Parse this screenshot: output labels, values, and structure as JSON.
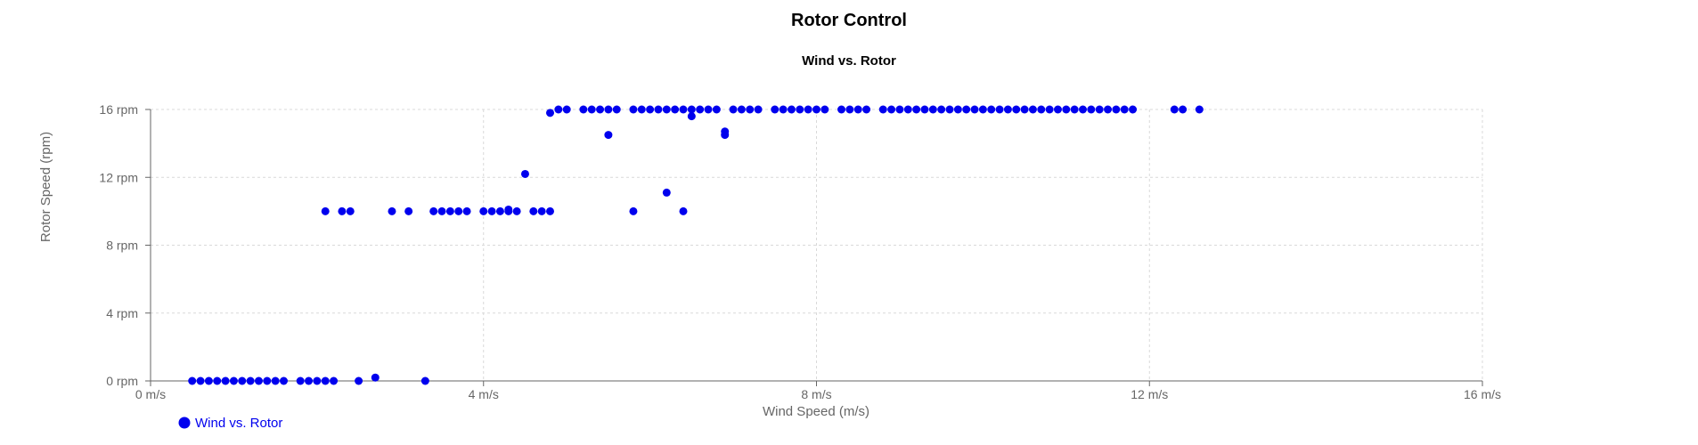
{
  "chart_data": {
    "type": "scatter",
    "title": "Rotor Control",
    "subtitle": "Wind vs. Rotor",
    "xlabel": "Wind Speed (m/s)",
    "ylabel": "Rotor Speed (rpm)",
    "xlim": [
      0,
      16
    ],
    "ylim": [
      0,
      16
    ],
    "x_ticks": [
      "0 m/s",
      "4 m/s",
      "8 m/s",
      "12 m/s",
      "16 m/s"
    ],
    "y_ticks": [
      "0 rpm",
      "4 rpm",
      "8 rpm",
      "12 rpm",
      "16 rpm"
    ],
    "grid": true,
    "legend_position": "bottom-left",
    "series": [
      {
        "name": "Wind vs. Rotor",
        "color": "#0000ee",
        "points": [
          [
            0.5,
            0
          ],
          [
            0.6,
            0
          ],
          [
            0.7,
            0
          ],
          [
            0.8,
            0
          ],
          [
            0.9,
            0
          ],
          [
            1.0,
            0
          ],
          [
            1.1,
            0
          ],
          [
            1.2,
            0
          ],
          [
            1.3,
            0
          ],
          [
            1.4,
            0
          ],
          [
            1.5,
            0
          ],
          [
            1.6,
            0
          ],
          [
            1.8,
            0
          ],
          [
            1.9,
            0
          ],
          [
            2.0,
            0
          ],
          [
            2.1,
            0
          ],
          [
            2.2,
            0
          ],
          [
            2.5,
            0
          ],
          [
            2.7,
            0.2
          ],
          [
            3.3,
            0
          ],
          [
            2.1,
            10
          ],
          [
            2.3,
            10
          ],
          [
            2.4,
            10
          ],
          [
            2.9,
            10
          ],
          [
            3.1,
            10
          ],
          [
            3.4,
            10
          ],
          [
            3.5,
            10
          ],
          [
            3.6,
            10
          ],
          [
            3.7,
            10
          ],
          [
            3.8,
            10
          ],
          [
            4.0,
            10
          ],
          [
            4.1,
            10
          ],
          [
            4.2,
            10
          ],
          [
            4.3,
            10
          ],
          [
            4.3,
            10.1
          ],
          [
            4.4,
            10
          ],
          [
            4.6,
            10
          ],
          [
            4.7,
            10
          ],
          [
            4.8,
            10
          ],
          [
            4.5,
            12.2
          ],
          [
            4.8,
            15.8
          ],
          [
            4.9,
            16
          ],
          [
            5.0,
            16
          ],
          [
            5.2,
            16
          ],
          [
            5.3,
            16
          ],
          [
            5.4,
            16
          ],
          [
            5.5,
            16
          ],
          [
            5.6,
            16
          ],
          [
            5.5,
            14.5
          ],
          [
            5.8,
            16
          ],
          [
            5.9,
            16
          ],
          [
            6.0,
            16
          ],
          [
            6.1,
            16
          ],
          [
            6.2,
            16
          ],
          [
            6.3,
            16
          ],
          [
            6.4,
            16
          ],
          [
            6.5,
            16
          ],
          [
            6.6,
            16
          ],
          [
            6.7,
            16
          ],
          [
            6.8,
            16
          ],
          [
            6.5,
            15.6
          ],
          [
            5.8,
            10
          ],
          [
            6.2,
            11.1
          ],
          [
            6.4,
            10
          ],
          [
            6.9,
            14.7
          ],
          [
            6.9,
            14.5
          ],
          [
            7.0,
            16
          ],
          [
            7.1,
            16
          ],
          [
            7.2,
            16
          ],
          [
            7.3,
            16
          ],
          [
            7.5,
            16
          ],
          [
            7.6,
            16
          ],
          [
            7.7,
            16
          ],
          [
            7.8,
            16
          ],
          [
            7.9,
            16
          ],
          [
            8.0,
            16
          ],
          [
            8.1,
            16
          ],
          [
            8.3,
            16
          ],
          [
            8.4,
            16
          ],
          [
            8.5,
            16
          ],
          [
            8.6,
            16
          ],
          [
            8.8,
            16
          ],
          [
            8.9,
            16
          ],
          [
            9.0,
            16
          ],
          [
            9.1,
            16
          ],
          [
            9.2,
            16
          ],
          [
            9.3,
            16
          ],
          [
            9.4,
            16
          ],
          [
            9.5,
            16
          ],
          [
            9.6,
            16
          ],
          [
            9.7,
            16
          ],
          [
            9.8,
            16
          ],
          [
            9.9,
            16
          ],
          [
            10.0,
            16
          ],
          [
            10.1,
            16
          ],
          [
            10.2,
            16
          ],
          [
            10.3,
            16
          ],
          [
            10.4,
            16
          ],
          [
            10.5,
            16
          ],
          [
            10.6,
            16
          ],
          [
            10.7,
            16
          ],
          [
            10.8,
            16
          ],
          [
            10.9,
            16
          ],
          [
            11.0,
            16
          ],
          [
            11.1,
            16
          ],
          [
            11.2,
            16
          ],
          [
            11.3,
            16
          ],
          [
            11.4,
            16
          ],
          [
            11.5,
            16
          ],
          [
            11.6,
            16
          ],
          [
            11.7,
            16
          ],
          [
            11.8,
            16
          ],
          [
            12.3,
            16
          ],
          [
            12.4,
            16
          ],
          [
            12.6,
            16
          ]
        ]
      }
    ]
  }
}
